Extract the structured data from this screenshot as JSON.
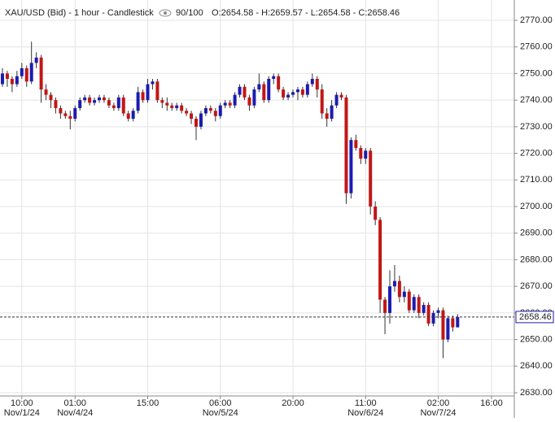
{
  "chart_data": {
    "type": "candlestick",
    "header": {
      "title": "XAU/USD (Bid) - 1 hour - Candlestick",
      "visible": "90/100",
      "ohlc": "O:2654.58 - H:2659.57 - L:2654.58 - C:2658.46"
    },
    "up_color": "#1c1cb0",
    "down_color": "#c21616",
    "grid": true,
    "categories": [
      null,
      null,
      null,
      null,
      "10:00",
      null,
      null,
      null,
      null,
      null,
      null,
      null,
      null,
      null,
      null,
      "01:00",
      null,
      null,
      null,
      null,
      null,
      null,
      null,
      null,
      null,
      null,
      null,
      null,
      null,
      null,
      "15:00",
      null,
      null,
      null,
      null,
      null,
      null,
      null,
      null,
      null,
      null,
      null,
      null,
      null,
      null,
      "06:00",
      null,
      null,
      null,
      null,
      null,
      null,
      null,
      null,
      null,
      null,
      null,
      null,
      null,
      null,
      "20:00",
      null,
      null,
      null,
      null,
      null,
      null,
      null,
      null,
      null,
      null,
      null,
      null,
      null,
      null,
      "11:00",
      null,
      null,
      null,
      null,
      null,
      null,
      null,
      null,
      null,
      null,
      null,
      null,
      null,
      null,
      "02:00",
      null,
      null,
      null,
      null,
      null,
      null,
      null,
      null,
      null,
      null,
      "16:00"
    ],
    "dates": [
      null,
      null,
      null,
      null,
      "Nov/1/24",
      null,
      null,
      null,
      null,
      null,
      null,
      null,
      null,
      null,
      null,
      "Nov/4/24",
      null,
      null,
      null,
      null,
      null,
      null,
      null,
      null,
      null,
      null,
      null,
      null,
      null,
      null,
      null,
      null,
      null,
      null,
      null,
      null,
      null,
      null,
      null,
      null,
      null,
      null,
      null,
      null,
      null,
      "Nov/5/24",
      null,
      null,
      null,
      null,
      null,
      null,
      null,
      null,
      null,
      null,
      null,
      null,
      null,
      null,
      null,
      null,
      null,
      null,
      null,
      null,
      null,
      null,
      null,
      null,
      null,
      null,
      null,
      null,
      null,
      "Nov/6/24",
      null,
      null,
      null,
      null,
      null,
      null,
      null,
      null,
      null,
      null,
      null,
      null,
      null,
      null,
      "Nov/7/24",
      null,
      null,
      null,
      null,
      null,
      null,
      null,
      null,
      null,
      null,
      null
    ],
    "open": [
      2746,
      2750,
      2748,
      2746,
      2749,
      2752,
      2747,
      2754,
      2756,
      2744,
      2742,
      2740,
      2737,
      2735,
      2734,
      2733,
      2737,
      2740,
      2741,
      2739,
      2740,
      2741,
      2740,
      2738,
      2737,
      2741,
      2735,
      2733,
      2736,
      2743,
      2740,
      2746,
      2747,
      2740,
      2739,
      2738,
      2737,
      2738,
      2736,
      2735,
      2733,
      2730,
      2735,
      2737,
      2736,
      2734,
      2738,
      2739,
      2738,
      2742,
      2745,
      2741,
      2738,
      2744,
      2746,
      2740,
      2748,
      2749,
      2744,
      2741,
      2742,
      2743,
      2744,
      2742,
      2746,
      2748,
      2744,
      2735,
      2733,
      2738,
      2742,
      2741,
      2705,
      2725,
      2722,
      2718,
      2721,
      2700,
      2695,
      2665,
      2660,
      2670,
      2672,
      2666,
      2668,
      2661,
      2666,
      2660,
      2663,
      2656,
      2660,
      2661,
      2650,
      2658,
      2654.58,
      null,
      null,
      null,
      null,
      null,
      null,
      null
    ],
    "high": [
      2752,
      2751,
      2749,
      2751,
      2754,
      2753,
      2762,
      2758,
      2757,
      2746,
      2743,
      2741,
      2738,
      2736,
      2736,
      2738,
      2741,
      2742,
      2742,
      2741,
      2742,
      2742,
      2741,
      2739,
      2742,
      2742,
      2736,
      2737,
      2745,
      2744,
      2748,
      2748,
      2748,
      2741,
      2741,
      2739,
      2739,
      2739,
      2737,
      2736,
      2734,
      2736,
      2738,
      2738,
      2737,
      2739,
      2740,
      2740,
      2743,
      2746,
      2746,
      2742,
      2745,
      2750,
      2747,
      2749,
      2750,
      2750,
      2745,
      2743,
      2744,
      2745,
      2745,
      2747,
      2750,
      2749,
      2746,
      2737,
      2740,
      2743,
      2743,
      2742,
      2726,
      2727,
      2723,
      2722,
      2722,
      2702,
      2696,
      2666,
      2676,
      2678,
      2674,
      2670,
      2669,
      2667,
      2667,
      2664,
      2664,
      2661,
      2662,
      2662,
      2659,
      2659,
      2659.57,
      null,
      null,
      null,
      null,
      null,
      null,
      null
    ],
    "low": [
      2745,
      2745,
      2743,
      2745,
      2748,
      2745,
      2746,
      2752,
      2739,
      2740,
      2737,
      2735,
      2733,
      2733,
      2729,
      2732,
      2736,
      2739,
      2738,
      2738,
      2739,
      2739,
      2737,
      2736,
      2736,
      2734,
      2732,
      2732,
      2735,
      2739,
      2739,
      2744,
      2739,
      2737,
      2736,
      2736,
      2736,
      2735,
      2734,
      2731,
      2725,
      2729,
      2734,
      2735,
      2732,
      2733,
      2737,
      2737,
      2737,
      2741,
      2740,
      2736,
      2737,
      2743,
      2739,
      2739,
      2746,
      2743,
      2740,
      2740,
      2741,
      2740,
      2741,
      2741,
      2745,
      2741,
      2733,
      2730,
      2732,
      2737,
      2740,
      2701,
      2703,
      2721,
      2716,
      2716,
      2697,
      2693,
      2660,
      2652,
      2656,
      2668,
      2664,
      2664,
      2660,
      2660,
      2658,
      2659,
      2655,
      2655,
      2658,
      2643,
      2649,
      2653,
      2654.58,
      null,
      null,
      null,
      null,
      null,
      null,
      null
    ],
    "close": [
      2750,
      2748,
      2746,
      2749,
      2752,
      2747,
      2754,
      2756,
      2744,
      2742,
      2740,
      2737,
      2735,
      2734,
      2733,
      2737,
      2740,
      2741,
      2739,
      2740,
      2741,
      2740,
      2738,
      2737,
      2741,
      2735,
      2733,
      2736,
      2743,
      2740,
      2746,
      2747,
      2740,
      2739,
      2738,
      2737,
      2738,
      2736,
      2735,
      2733,
      2730,
      2735,
      2737,
      2736,
      2734,
      2738,
      2739,
      2738,
      2742,
      2745,
      2741,
      2738,
      2744,
      2746,
      2740,
      2748,
      2749,
      2744,
      2741,
      2742,
      2743,
      2744,
      2742,
      2746,
      2748,
      2744,
      2735,
      2733,
      2738,
      2742,
      2741,
      2705,
      2725,
      2722,
      2718,
      2721,
      2700,
      2695,
      2665,
      2660,
      2670,
      2672,
      2666,
      2668,
      2661,
      2666,
      2660,
      2663,
      2656,
      2660,
      2661,
      2650,
      2658,
      2654.58,
      2658.46,
      null,
      null,
      null,
      null,
      null,
      null,
      null
    ],
    "ylim": [
      2630,
      2770
    ],
    "yticks": [
      {
        "value": 2630,
        "label": "2630.00"
      },
      {
        "value": 2640,
        "label": "2640.00"
      },
      {
        "value": 2650,
        "label": "2650.00"
      },
      {
        "value": 2660,
        "label": "2660.00"
      },
      {
        "value": 2670,
        "label": "2670.00"
      },
      {
        "value": 2680,
        "label": "2680.00"
      },
      {
        "value": 2690,
        "label": "2690.00"
      },
      {
        "value": 2700,
        "label": "2700.00"
      },
      {
        "value": 2710,
        "label": "2710.00"
      },
      {
        "value": 2720,
        "label": "2720.00"
      },
      {
        "value": 2730,
        "label": "2730.00"
      },
      {
        "value": 2740,
        "label": "2740.00"
      },
      {
        "value": 2750,
        "label": "2750.00"
      },
      {
        "value": 2760,
        "label": "2760.00"
      },
      {
        "value": 2770,
        "label": "2770.00"
      }
    ],
    "last_price": 2658.46
  }
}
